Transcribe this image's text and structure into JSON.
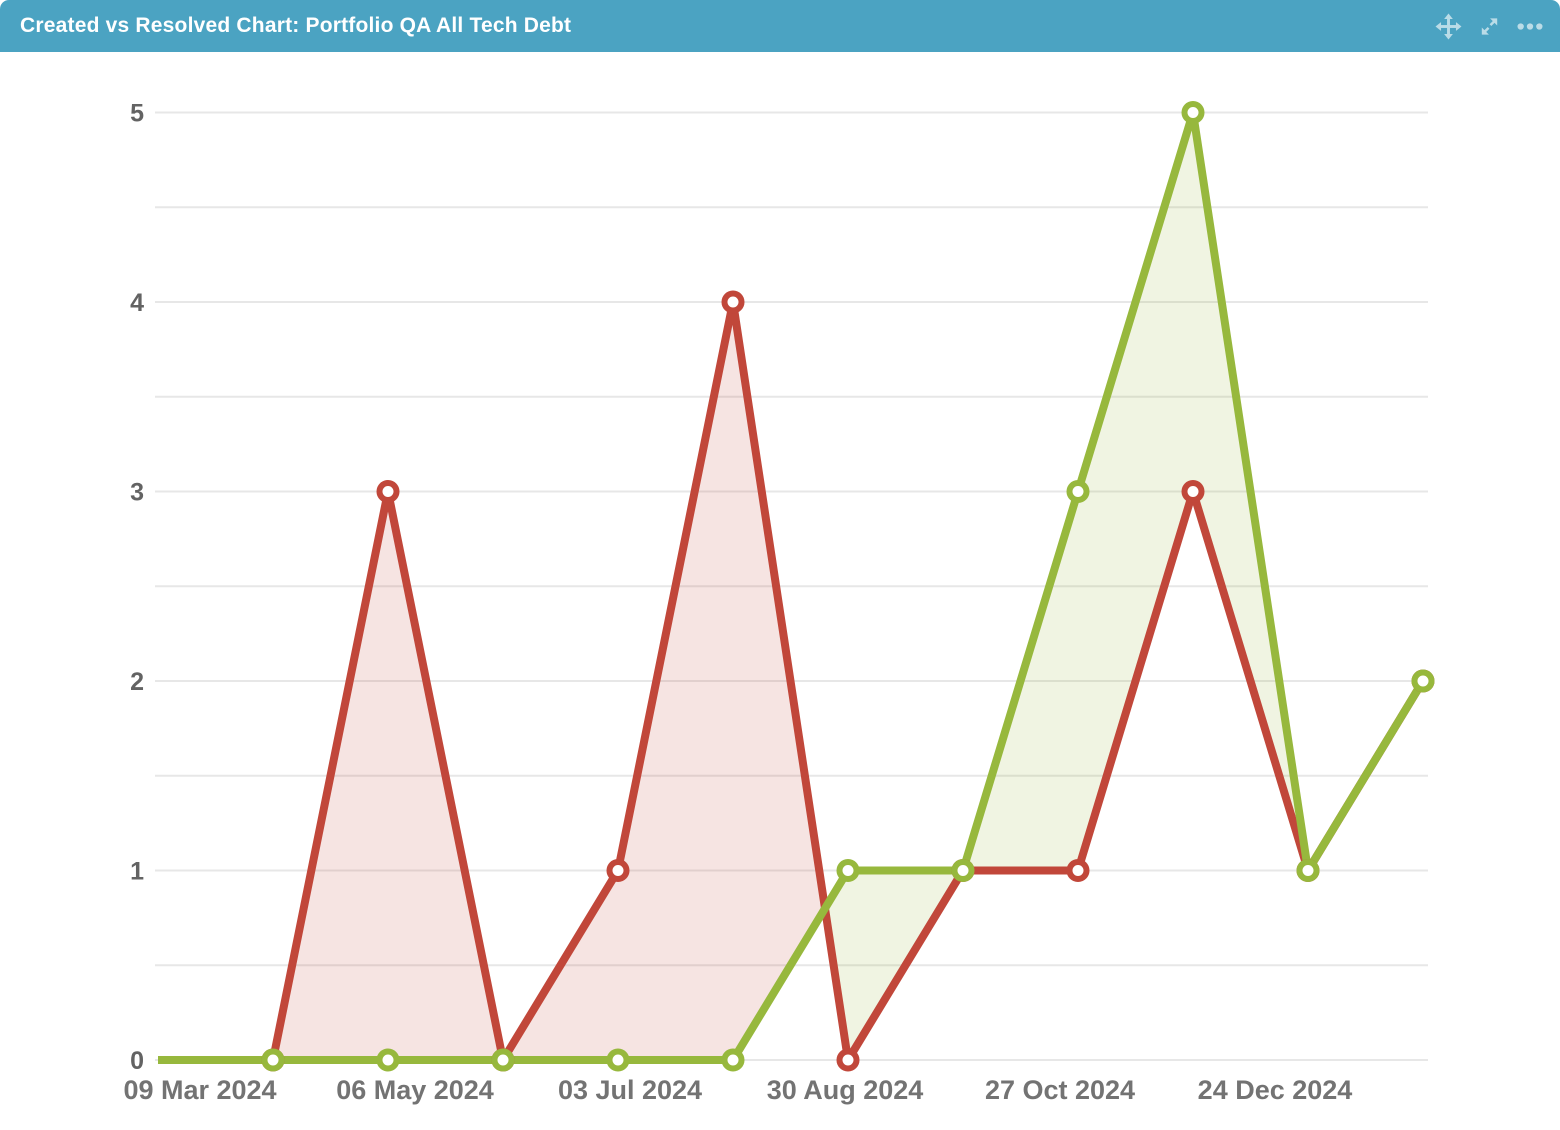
{
  "header": {
    "title": "Created vs Resolved Chart: Portfolio QA All Tech Debt",
    "background_color": "#4BA3C2",
    "actions": {
      "move_tooltip": "Move",
      "expand_tooltip": "Expand",
      "menu_tooltip": "More options"
    }
  },
  "chart_data": {
    "type": "line",
    "title": "Created vs Resolved Chart: Portfolio QA All Tech Debt",
    "xlabel": "",
    "ylabel": "",
    "ylim": [
      0,
      5
    ],
    "y_ticks": [
      0,
      1,
      2,
      3,
      4,
      5
    ],
    "grid": {
      "horizontal": true,
      "step": 0.5,
      "color": "#e7e7e7"
    },
    "legend_position": "none",
    "num_points": 12,
    "x_tick_labels": [
      "09 Mar 2024",
      "06 May 2024",
      "03 Jul 2024",
      "30 Aug 2024",
      "27 Oct 2024",
      "24 Dec 2024"
    ],
    "series": [
      {
        "name": "Created",
        "color": "#C1473A",
        "values": [
          0,
          0,
          3,
          0,
          1,
          4,
          0,
          1,
          1,
          3,
          1,
          2
        ]
      },
      {
        "name": "Resolved",
        "color": "#97B83D",
        "values": [
          0,
          0,
          0,
          0,
          0,
          0,
          1,
          1,
          3,
          5,
          1,
          2
        ]
      }
    ],
    "fill_between_curves": true,
    "fill_opacity": 0.15,
    "marker_style": "circle, white core, colored ring, no marker on first point"
  }
}
